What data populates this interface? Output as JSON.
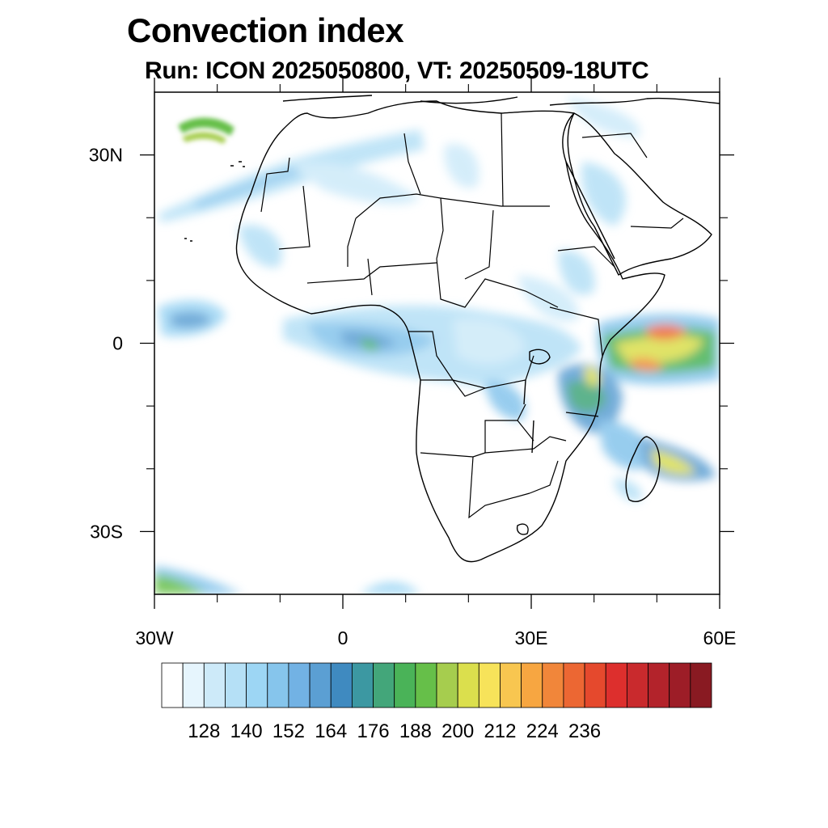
{
  "title": "Convection index",
  "subtitle": "Run: ICON 2025050800,  VT: 20250509-18UTC",
  "map": {
    "lon_range": [
      -30,
      60
    ],
    "lat_range": [
      -40,
      40
    ],
    "lon_ticks": [
      {
        "value": -30,
        "label": "30W"
      },
      {
        "value": 0,
        "label": "0"
      },
      {
        "value": 30,
        "label": "30E"
      },
      {
        "value": 60,
        "label": "60E"
      }
    ],
    "lat_ticks": [
      {
        "value": 30,
        "label": "30N"
      },
      {
        "value": 0,
        "label": "0"
      },
      {
        "value": -30,
        "label": "30S"
      }
    ],
    "minor_lon_ticks": [
      -20,
      -10,
      10,
      20,
      40,
      50
    ],
    "minor_lat_ticks": [
      20,
      10,
      -10,
      -20
    ]
  },
  "colorbar": {
    "colors": [
      "#ffffff",
      "#e6f5fd",
      "#cdeaf9",
      "#b5e0f6",
      "#9dd6f4",
      "#86c5ec",
      "#72b2e4",
      "#5b9fd3",
      "#3f8ac0",
      "#3c98a2",
      "#43a67a",
      "#4ab358",
      "#66bf49",
      "#a6cd4e",
      "#dbdf4d",
      "#f7e35a",
      "#f8c650",
      "#f7a641",
      "#f1863a",
      "#ec6733",
      "#e5492d",
      "#dd2f2d",
      "#c92a2d",
      "#b3232b",
      "#9d1d27",
      "#891a22"
    ],
    "labels": [
      "128",
      "140",
      "152",
      "164",
      "176",
      "188",
      "200",
      "212",
      "224",
      "236"
    ]
  }
}
